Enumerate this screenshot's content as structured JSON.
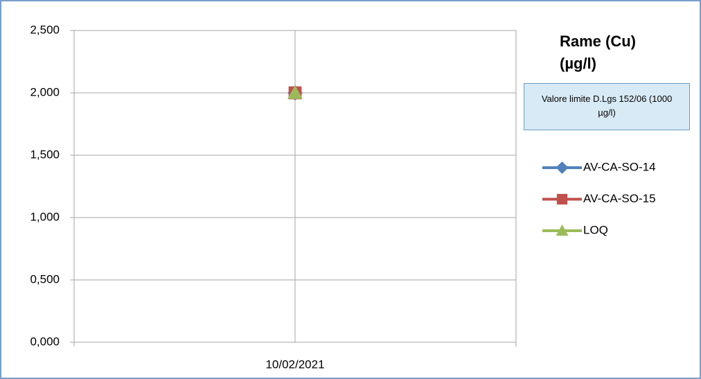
{
  "chart_data": {
    "type": "line",
    "title": "Rame (Cu) (µg/l)",
    "annotation": "Valore limite D.Lgs 152/06 (1000 µg/l)",
    "categories": [
      "10/02/2021"
    ],
    "series": [
      {
        "name": "AV-CA-SO-14",
        "color": "#4f81bd",
        "marker": "diamond",
        "values": [
          2
        ]
      },
      {
        "name": "AV-CA-SO-15",
        "color": "#c0504d",
        "marker": "square",
        "values": [
          2
        ]
      },
      {
        "name": "LOQ",
        "color": "#9bbb59",
        "marker": "triangle",
        "values": [
          2
        ]
      }
    ],
    "ylim": [
      0,
      2.5
    ],
    "yticks": [
      {
        "value": 0,
        "label": "0,000"
      },
      {
        "value": 0.5,
        "label": "0,500"
      },
      {
        "value": 1,
        "label": "1,000"
      },
      {
        "value": 1.5,
        "label": "1,500"
      },
      {
        "value": 2,
        "label": "2,000"
      },
      {
        "value": 2.5,
        "label": "2,500"
      }
    ],
    "grid": true
  }
}
